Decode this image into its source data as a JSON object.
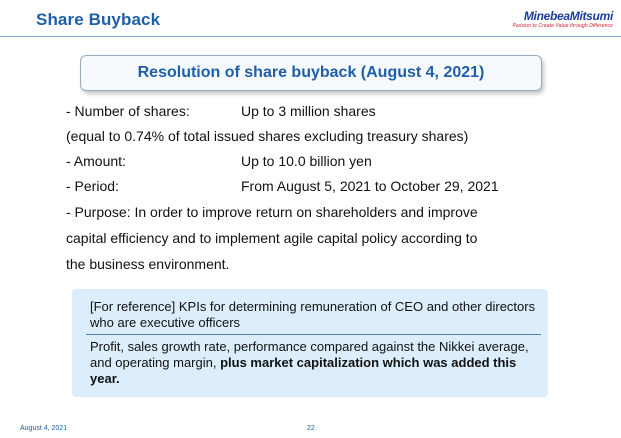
{
  "header": {
    "title": "Share Buyback",
    "logo": "MinebeaMitsumi",
    "logo_tagline": "Passion to Create Value through Difference"
  },
  "heading": "Resolution of share buyback (August 4, 2021)",
  "details": {
    "shares_label": "- Number of shares:",
    "shares_value": "Up to 3 million shares",
    "shares_note": "(equal to 0.74% of total issued shares excluding treasury shares)",
    "amount_label": "- Amount:",
    "amount_value": "Up to 10.0 billion yen",
    "period_label": "- Period:",
    "period_value": "From August 5, 2021 to October 29, 2021",
    "purpose_line1": "- Purpose: In order to improve return on shareholders and improve",
    "purpose_line2": "capital efficiency and to implement agile capital policy according to",
    "purpose_line3": "the business environment."
  },
  "reference": {
    "heading": "[For reference] KPIs for determining remuneration of CEO and other directors who are executive officers",
    "body": "Profit, sales growth rate, performance compared against the Nikkei average, and operating margin, ",
    "body_bold": "plus market capitalization which was added this year."
  },
  "footer": {
    "date": "August 4, 2021",
    "page": "22"
  },
  "colors": {
    "accent": "#1f5fa8",
    "note_background": "#dceefb"
  }
}
